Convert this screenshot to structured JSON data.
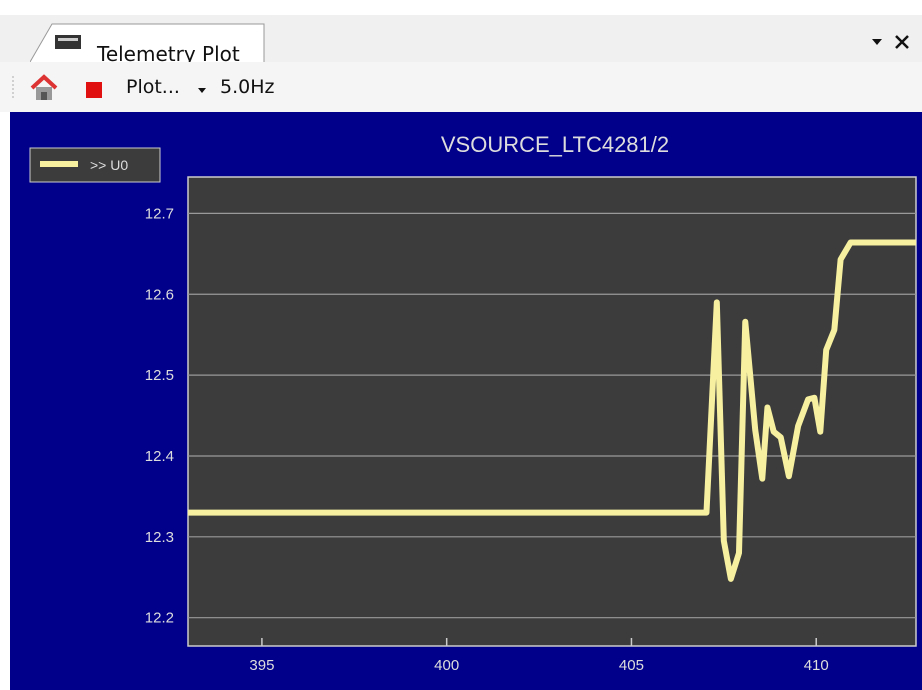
{
  "tab": {
    "title": "Telemetry Plot"
  },
  "toolbar": {
    "plot_menu": "Plot...",
    "rate": "5.0Hz"
  },
  "chart_data": {
    "type": "line",
    "title": "VSOURCE_LTC4281/2",
    "x": [
      393,
      407.03,
      407.31,
      407.5,
      407.69,
      407.91,
      408.08,
      408.35,
      408.54,
      408.68,
      408.85,
      409.04,
      409.26,
      409.51,
      409.78,
      409.95,
      410.11,
      410.27,
      410.49,
      410.66,
      410.93,
      412.7
    ],
    "series": [
      {
        "name": ">> U0",
        "color": "#f6f0a0",
        "values": [
          12.33,
          12.33,
          12.59,
          12.295,
          12.248,
          12.28,
          12.566,
          12.432,
          12.372,
          12.46,
          12.43,
          12.423,
          12.375,
          12.437,
          12.47,
          12.472,
          12.43,
          12.531,
          12.556,
          12.643,
          12.664,
          12.664
        ]
      }
    ],
    "xlim": [
      393,
      412.7
    ],
    "xticks": [
      395,
      400,
      405,
      410
    ],
    "ylim": [
      12.165,
      12.745
    ],
    "yticks": [
      12.2,
      12.3,
      12.4,
      12.5,
      12.6,
      12.7
    ],
    "grid": true,
    "legend": "top-left"
  }
}
